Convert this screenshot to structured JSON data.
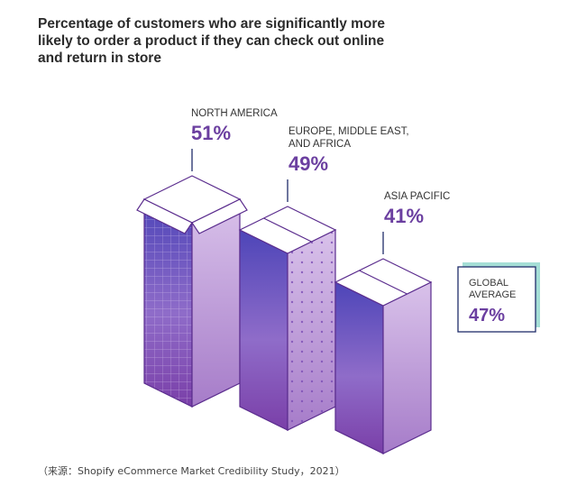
{
  "chart_data": {
    "type": "bar",
    "title": "Percentage of customers who are significantly more likely to order a product if they can check out online and return in store",
    "categories": [
      "NORTH AMERICA",
      "EUROPE, MIDDLE EAST, AND AFRICA",
      "ASIA PACIFIC"
    ],
    "category_lines": [
      [
        "NORTH AMERICA"
      ],
      [
        "EUROPE, MIDDLE EAST,",
        "AND AFRICA"
      ],
      [
        "ASIA PACIFIC"
      ]
    ],
    "values": [
      51,
      49,
      41
    ],
    "value_labels": [
      "51%",
      "49%",
      "41%"
    ],
    "unit": "%",
    "global_average": {
      "label_lines": [
        "GLOBAL",
        "AVERAGE"
      ],
      "value": 47,
      "value_label": "47%"
    },
    "xlabel": "",
    "ylabel": ""
  },
  "source": "（来源：Shopify eCommerce Market Credibility Study，2021）",
  "colors": {
    "outline": "#5b2d8e",
    "front_top": "#5a3fb2",
    "front_bottom": "#7e3eaa",
    "side_top": "#d4b9e6",
    "side_bottom": "#b18ad0",
    "accent_label": "#6b3fa0",
    "avg_border": "#1f2d6a",
    "avg_shadow": "#a5ded6"
  }
}
